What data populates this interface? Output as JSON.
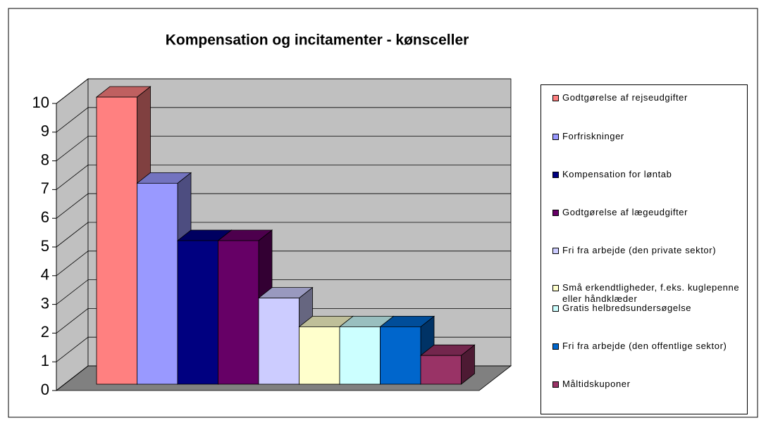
{
  "chart_data": {
    "type": "bar3d",
    "title": "Kompensation og incitamenter - kønsceller",
    "ylim": [
      0,
      10
    ],
    "yticks": [
      0,
      1,
      2,
      3,
      4,
      5,
      6,
      7,
      8,
      9,
      10
    ],
    "grid": true,
    "legend": "right",
    "series": [
      {
        "name": "Godtgørelse af rejseudgifter",
        "color": "#ff8080",
        "values": [
          10
        ]
      },
      {
        "name": "Forfriskninger",
        "color": "#9999ff",
        "values": [
          7
        ]
      },
      {
        "name": "Kompensation for løntab",
        "color": "#000080",
        "values": [
          5
        ]
      },
      {
        "name": "Godtgørelse af lægeudgifter",
        "color": "#660066",
        "values": [
          5
        ]
      },
      {
        "name": "Fri fra arbejde (den private sektor)",
        "color": "#ccccff",
        "values": [
          3
        ]
      },
      {
        "name": "Små erkendtligheder, f.eks. kuglepenne eller håndklæder",
        "color": "#ffffcc",
        "values": [
          2
        ]
      },
      {
        "name": "Gratis helbredsundersøgelse",
        "color": "#ccffff",
        "values": [
          2
        ]
      },
      {
        "name": "Fri fra arbejde (den offentlige sektor)",
        "color": "#0066cc",
        "values": [
          2
        ]
      },
      {
        "name": "Måltidskuponer",
        "color": "#993366",
        "values": [
          1
        ]
      }
    ]
  }
}
